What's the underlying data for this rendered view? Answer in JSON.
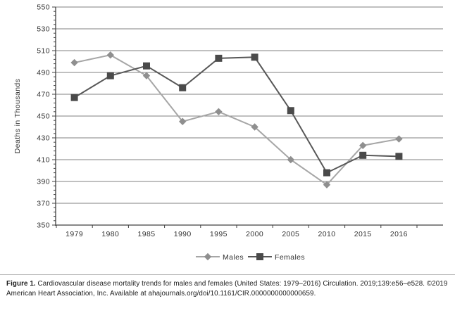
{
  "figure": {
    "caption_label": "Figure 1.",
    "caption_text": " Cardiovascular disease mortality trends for males and females (United States: 1979–2016) Circulation. 2019;139:e56–e528. ©2019 American Heart Association, Inc. Available at ahajournals.org/doi/10.1161/CIR.0000000000000659."
  },
  "chart_data": {
    "type": "line",
    "title": "",
    "xlabel": "",
    "ylabel": "Deaths in Thousands",
    "categories": [
      "1979",
      "1980",
      "1985",
      "1990",
      "1995",
      "2000",
      "2005",
      "2010",
      "2015",
      "2016"
    ],
    "series": [
      {
        "name": "Males",
        "marker": "diamond",
        "color": "#a6a6a6",
        "marker_color": "#8f8f8f",
        "values": [
          499,
          506,
          487,
          445,
          454,
          440,
          410,
          387,
          423,
          429
        ]
      },
      {
        "name": "Females",
        "marker": "square",
        "color": "#575757",
        "marker_color": "#4a4a4a",
        "values": [
          467,
          487,
          496,
          476,
          503,
          504,
          455,
          398,
          414,
          413
        ]
      }
    ],
    "ylim": [
      350,
      550
    ],
    "yticks": [
      350,
      370,
      390,
      410,
      430,
      450,
      470,
      490,
      510,
      530,
      550
    ],
    "y_minor_step": 4,
    "grid": true,
    "legend_position": "bottom"
  },
  "colors": {
    "grid": "#808080",
    "axis": "#404040",
    "tick_text": "#333333",
    "background": "#ffffff",
    "caption_divider": "#b3b3b3"
  }
}
